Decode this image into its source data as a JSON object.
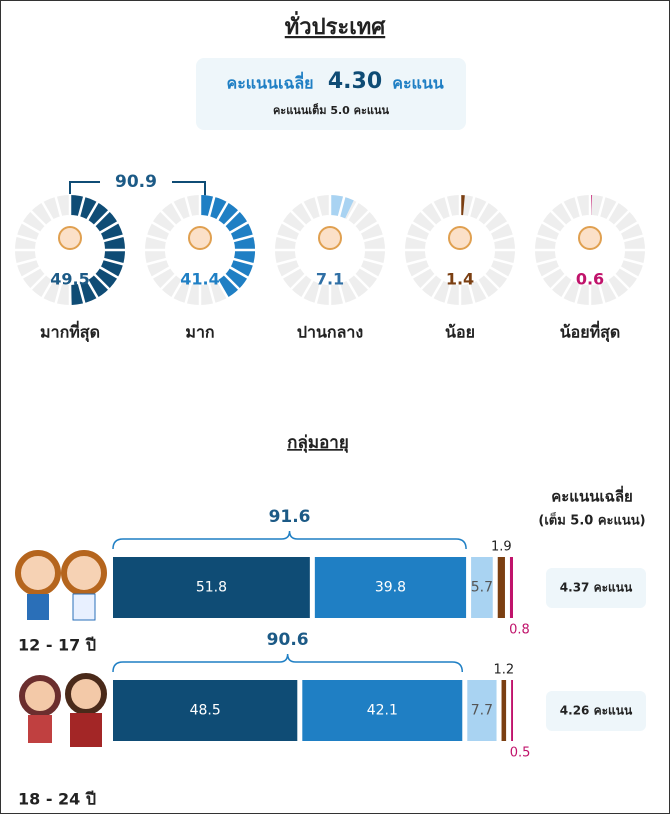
{
  "title": "ทั่วประเทศ",
  "score": {
    "label": "คะแนนเฉลี่ย",
    "value": "4.30",
    "unit": "คะแนน",
    "note": "คะแนนเต็ม 5.0 คะแนน"
  },
  "combined": 90.9,
  "levels": [
    {
      "name": "มากที่สุด",
      "value": 49.5,
      "color": "#0f4c75",
      "label_color": "#1c5a86"
    },
    {
      "name": "มาก",
      "value": 41.4,
      "color": "#1f7fc4",
      "label_color": "#1f7fc4"
    },
    {
      "name": "ปานกลาง",
      "value": 7.1,
      "color": "#a9d3f2",
      "label_color": "#2f6fa5"
    },
    {
      "name": "น้อย",
      "value": 1.4,
      "color": "#7b3f12",
      "label_color": "#7b3f12"
    },
    {
      "name": "น้อยที่สุด",
      "value": 0.6,
      "color": "#c0136b",
      "label_color": "#c0136b"
    }
  ],
  "age_section": {
    "title": "กลุ่มอายุ",
    "avg_header": "คะแนนเฉลี่ย",
    "avg_note": "(เต็ม 5.0 คะแนน)"
  },
  "groups": [
    {
      "label": "12 - 17 ปี",
      "combined": 91.6,
      "values": [
        51.8,
        39.8,
        5.7,
        1.9,
        0.8
      ],
      "score": "4.37 คะแนน"
    },
    {
      "label": "18 - 24 ปี",
      "combined": 90.6,
      "values": [
        48.5,
        42.1,
        7.7,
        1.2,
        0.5
      ],
      "score": "4.26 คะแนน"
    }
  ]
}
